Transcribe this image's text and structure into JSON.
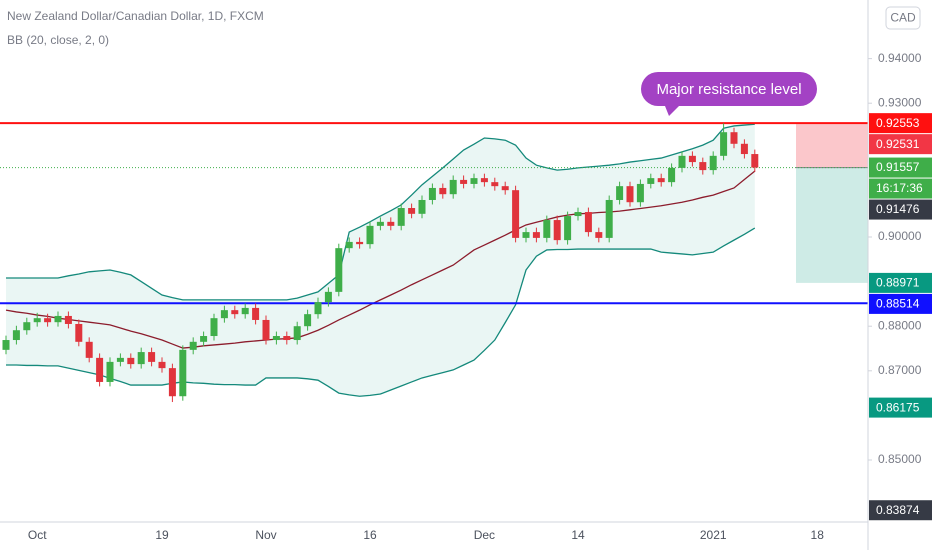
{
  "chart_data": {
    "type": "candlestick",
    "title": "New Zealand Dollar/Canadian Dollar, 1D, FXCM",
    "currency_button": "CAD",
    "annotation": "Major resistance level",
    "annotation_color": "#a342c4",
    "up_color": "#3fae49",
    "down_color": "#e0343c",
    "categories": [
      null,
      null,
      null,
      "Oct",
      null,
      null,
      null,
      null,
      null,
      null,
      null,
      null,
      null,
      null,
      null,
      "19",
      null,
      null,
      null,
      null,
      null,
      null,
      null,
      null,
      null,
      "Nov",
      null,
      null,
      null,
      null,
      null,
      null,
      null,
      null,
      null,
      "16",
      null,
      null,
      null,
      null,
      null,
      null,
      null,
      null,
      null,
      null,
      "Dec",
      null,
      null,
      null,
      null,
      null,
      null,
      null,
      null,
      "14",
      null,
      null,
      null,
      null,
      null,
      null,
      null,
      null,
      null,
      null,
      null,
      null,
      "2021",
      null,
      null,
      null,
      null,
      null,
      null,
      null,
      null,
      null,
      "18"
    ],
    "candles": [
      [
        0.8747,
        0.8779,
        0.8737,
        0.8769
      ],
      [
        0.8769,
        0.8801,
        0.8759,
        0.8791
      ],
      [
        0.8791,
        0.8819,
        0.8781,
        0.8809
      ],
      [
        0.8809,
        0.883,
        0.8799,
        0.8818
      ],
      [
        0.8818,
        0.8828,
        0.8799,
        0.8809
      ],
      [
        0.8809,
        0.8833,
        0.8799,
        0.8823
      ],
      [
        0.8823,
        0.8833,
        0.8795,
        0.8805
      ],
      [
        0.8805,
        0.8815,
        0.8755,
        0.8765
      ],
      [
        0.8765,
        0.8775,
        0.8719,
        0.8729
      ],
      [
        0.8729,
        0.8739,
        0.8665,
        0.8675
      ],
      [
        0.8675,
        0.873,
        0.8665,
        0.872
      ],
      [
        0.872,
        0.8739,
        0.871,
        0.8729
      ],
      [
        0.8729,
        0.8739,
        0.8705,
        0.8715
      ],
      [
        0.8715,
        0.8752,
        0.8705,
        0.8742
      ],
      [
        0.8742,
        0.8752,
        0.871,
        0.872
      ],
      [
        0.872,
        0.873,
        0.8696,
        0.8706
      ],
      [
        0.8706,
        0.8716,
        0.863,
        0.8643
      ],
      [
        0.8643,
        0.8757,
        0.8633,
        0.8747
      ],
      [
        0.8747,
        0.8775,
        0.8737,
        0.8765
      ],
      [
        0.8765,
        0.8788,
        0.8755,
        0.8778
      ],
      [
        0.8778,
        0.8828,
        0.8768,
        0.8818
      ],
      [
        0.8818,
        0.8846,
        0.8808,
        0.8836
      ],
      [
        0.8836,
        0.8846,
        0.8817,
        0.8827
      ],
      [
        0.8827,
        0.8851,
        0.8817,
        0.8841
      ],
      [
        0.8841,
        0.8851,
        0.8804,
        0.8814
      ],
      [
        0.8814,
        0.8824,
        0.8759,
        0.8769
      ],
      [
        0.8769,
        0.8788,
        0.8759,
        0.8778
      ],
      [
        0.8778,
        0.8788,
        0.8759,
        0.8769
      ],
      [
        0.8769,
        0.881,
        0.8759,
        0.88
      ],
      [
        0.88,
        0.8837,
        0.879,
        0.8827
      ],
      [
        0.8827,
        0.8864,
        0.8817,
        0.8854
      ],
      [
        0.8854,
        0.8887,
        0.8844,
        0.8877
      ],
      [
        0.8877,
        0.8985,
        0.8867,
        0.8975
      ],
      [
        0.8975,
        0.8999,
        0.8965,
        0.8989
      ],
      [
        0.8989,
        0.8999,
        0.8974,
        0.8984
      ],
      [
        0.8984,
        0.9035,
        0.8974,
        0.9025
      ],
      [
        0.9025,
        0.9044,
        0.9015,
        0.9034
      ],
      [
        0.9034,
        0.9044,
        0.9015,
        0.9025
      ],
      [
        0.9025,
        0.9075,
        0.9015,
        0.9065
      ],
      [
        0.9065,
        0.9075,
        0.9042,
        0.9052
      ],
      [
        0.9052,
        0.9093,
        0.9042,
        0.9083
      ],
      [
        0.9083,
        0.912,
        0.9073,
        0.911
      ],
      [
        0.911,
        0.912,
        0.9086,
        0.9096
      ],
      [
        0.9096,
        0.9138,
        0.9086,
        0.9128
      ],
      [
        0.9128,
        0.9138,
        0.9109,
        0.9119
      ],
      [
        0.9119,
        0.9142,
        0.9109,
        0.9132
      ],
      [
        0.9132,
        0.9142,
        0.9113,
        0.9123
      ],
      [
        0.9123,
        0.9133,
        0.9104,
        0.9114
      ],
      [
        0.9114,
        0.9124,
        0.9095,
        0.9105
      ],
      [
        0.9105,
        0.9115,
        0.8988,
        0.8998
      ],
      [
        0.8998,
        0.9021,
        0.8988,
        0.9011
      ],
      [
        0.9011,
        0.9021,
        0.8988,
        0.8998
      ],
      [
        0.8998,
        0.9048,
        0.8988,
        0.9038
      ],
      [
        0.9038,
        0.9048,
        0.8983,
        0.8993
      ],
      [
        0.8993,
        0.9057,
        0.8983,
        0.9047
      ],
      [
        0.9047,
        0.9066,
        0.9037,
        0.9056
      ],
      [
        0.9056,
        0.9066,
        0.9001,
        0.9011
      ],
      [
        0.9011,
        0.9021,
        0.8988,
        0.8998
      ],
      [
        0.8998,
        0.9093,
        0.8988,
        0.9083
      ],
      [
        0.9083,
        0.9124,
        0.9073,
        0.9114
      ],
      [
        0.9114,
        0.9124,
        0.9068,
        0.9078
      ],
      [
        0.9078,
        0.9129,
        0.9068,
        0.9119
      ],
      [
        0.9119,
        0.9142,
        0.9109,
        0.9132
      ],
      [
        0.9132,
        0.9142,
        0.9113,
        0.9123
      ],
      [
        0.9123,
        0.9165,
        0.9113,
        0.9155
      ],
      [
        0.9155,
        0.9192,
        0.9145,
        0.9182
      ],
      [
        0.9182,
        0.9192,
        0.9158,
        0.9168
      ],
      [
        0.9168,
        0.9178,
        0.914,
        0.915
      ],
      [
        0.915,
        0.9192,
        0.914,
        0.9182
      ],
      [
        0.9182,
        0.9255,
        0.9172,
        0.9235
      ],
      [
        0.9235,
        0.9245,
        0.9199,
        0.9209
      ],
      [
        0.9209,
        0.9219,
        0.9176,
        0.9186
      ],
      [
        0.9186,
        0.9196,
        0.9146,
        0.91557
      ],
      null,
      null,
      null,
      null,
      null,
      null
    ],
    "bollinger": {
      "name": "BB (20, close, 2, 0)",
      "band_color": "#14897b",
      "middle_color": "#8c1c2c",
      "fill": "#eaf6f4",
      "upper": [
        0.8908,
        0.8908,
        0.8908,
        0.8908,
        0.8908,
        0.8908,
        0.8913,
        0.8917,
        0.8922,
        0.8924,
        0.8926,
        0.8921,
        0.8915,
        0.89,
        0.8885,
        0.887,
        0.8864,
        0.8859,
        0.8859,
        0.8859,
        0.8859,
        0.8859,
        0.8859,
        0.8859,
        0.8859,
        0.8859,
        0.8859,
        0.8859,
        0.8863,
        0.887,
        0.8877,
        0.8896,
        0.8915,
        0.9011,
        0.9022,
        0.9034,
        0.9047,
        0.9059,
        0.9072,
        0.9094,
        0.9117,
        0.9136,
        0.9155,
        0.9175,
        0.9195,
        0.9208,
        0.9222,
        0.922,
        0.9217,
        0.9206,
        0.9177,
        0.9161,
        0.9155,
        0.915,
        0.9152,
        0.9155,
        0.9157,
        0.9159,
        0.9161,
        0.9164,
        0.9168,
        0.9171,
        0.9174,
        0.9177,
        0.9184,
        0.9191,
        0.9198,
        0.9206,
        0.9217,
        0.9244,
        0.9249,
        0.9251,
        0.9253,
        null,
        null,
        null,
        null,
        null,
        null
      ],
      "middle": [
        0.8836,
        0.8832,
        0.8829,
        0.8825,
        0.8822,
        0.8818,
        0.8815,
        0.8812,
        0.8809,
        0.8806,
        0.8803,
        0.8796,
        0.8789,
        0.8783,
        0.8776,
        0.8769,
        0.876,
        0.8751,
        0.8753,
        0.8756,
        0.8758,
        0.876,
        0.8762,
        0.8765,
        0.8767,
        0.8769,
        0.8771,
        0.8772,
        0.8774,
        0.8782,
        0.8791,
        0.8802,
        0.8814,
        0.8825,
        0.8836,
        0.8848,
        0.8859,
        0.887,
        0.8881,
        0.8893,
        0.8904,
        0.8915,
        0.8926,
        0.8937,
        0.8954,
        0.8971,
        0.8982,
        0.8993,
        0.9004,
        0.9016,
        0.9027,
        0.9033,
        0.9039,
        0.9045,
        0.9049,
        0.9052,
        0.9053,
        0.9055,
        0.9056,
        0.9058,
        0.9061,
        0.9064,
        0.9067,
        0.907,
        0.9074,
        0.9078,
        0.9083,
        0.9089,
        0.9094,
        0.9102,
        0.911,
        0.9129,
        0.91476,
        null,
        null,
        null,
        null,
        null,
        null
      ],
      "lower": [
        0.8713,
        0.8713,
        0.8712,
        0.8712,
        0.8711,
        0.8711,
        0.8706,
        0.8701,
        0.8696,
        0.8691,
        0.8683,
        0.8676,
        0.8668,
        0.8668,
        0.8668,
        0.8668,
        0.8672,
        0.8675,
        0.8673,
        0.8672,
        0.867,
        0.8669,
        0.8669,
        0.8668,
        0.8668,
        0.8684,
        0.8684,
        0.8684,
        0.8684,
        0.8682,
        0.8679,
        0.8665,
        0.865,
        0.8646,
        0.8643,
        0.8645,
        0.8648,
        0.8657,
        0.8666,
        0.8675,
        0.8684,
        0.869,
        0.8696,
        0.8702,
        0.8713,
        0.8724,
        0.8746,
        0.8769,
        0.8808,
        0.8848,
        0.8926,
        0.8957,
        0.8971,
        0.8972,
        0.8972,
        0.8973,
        0.8973,
        0.8973,
        0.8973,
        0.8973,
        0.8973,
        0.8973,
        0.8973,
        0.8966,
        0.8964,
        0.8962,
        0.896,
        0.8963,
        0.8966,
        0.898,
        0.8993,
        0.9006,
        0.902,
        null,
        null,
        null,
        null,
        null,
        null
      ]
    },
    "resistance": {
      "value": 0.92553,
      "color": "#ff1010"
    },
    "support": {
      "value": 0.88514,
      "color": "#1010ff"
    },
    "position": {
      "stop": 0.92531,
      "target": 0.88971,
      "stop_color": "#f23645",
      "target_color": "#089981"
    },
    "countdown": "16:17:36",
    "price_labels": [
      {
        "value": 0.86175,
        "color": "#089981"
      },
      {
        "value": 0.83874,
        "color": "#363a45"
      }
    ],
    "ylim": [
      0.8361,
      0.95314
    ],
    "yticks": [
      {
        "value": 0.94,
        "label": "0.94000"
      },
      {
        "value": 0.93,
        "label": "0.93000"
      },
      {
        "value": 0.9,
        "label": "0.90000"
      },
      {
        "value": 0.88,
        "label": "0.88000"
      },
      {
        "value": 0.87,
        "label": "0.87000"
      },
      {
        "value": 0.85,
        "label": "0.85000"
      }
    ]
  }
}
